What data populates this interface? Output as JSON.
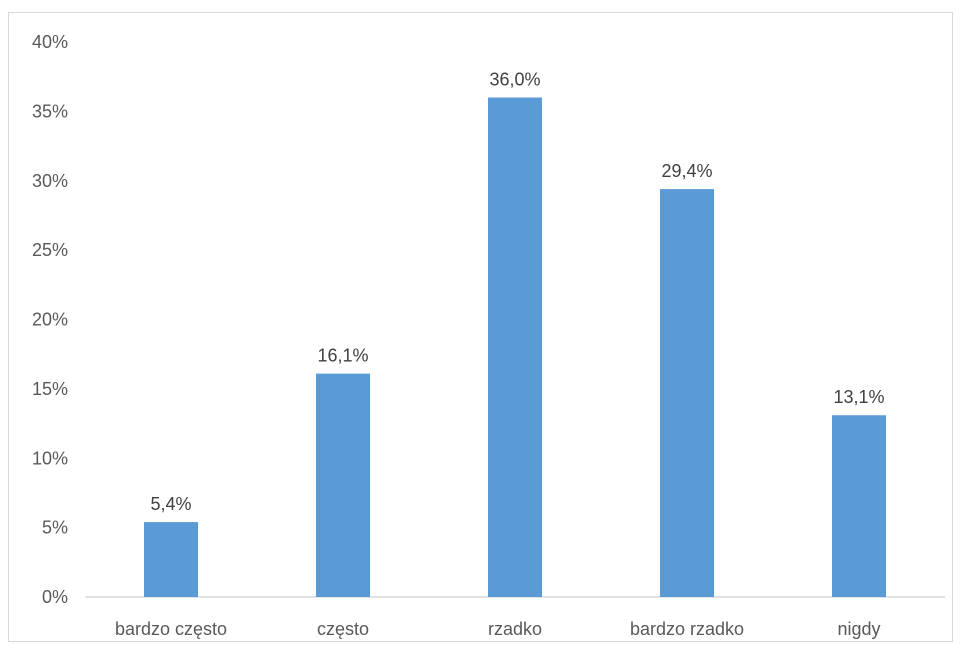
{
  "chart_data": {
    "type": "bar",
    "title": "",
    "xlabel": "",
    "ylabel": "",
    "categories": [
      "bardzo często",
      "często",
      "rzadko",
      "bardzo rzadko",
      "nigdy"
    ],
    "values": [
      5.4,
      16.1,
      36.0,
      29.4,
      13.1
    ],
    "data_labels": [
      "5,4%",
      "16,1%",
      "36,0%",
      "29,4%",
      "13,1%"
    ],
    "ylim": [
      0,
      40
    ],
    "yticks": [
      0,
      5,
      10,
      15,
      20,
      25,
      30,
      35,
      40
    ],
    "ytick_labels": [
      "0%",
      "5%",
      "10%",
      "15%",
      "20%",
      "25%",
      "30%",
      "35%",
      "40%"
    ],
    "grid": false,
    "legend": "none",
    "bar_color": "#5b9bd5"
  }
}
